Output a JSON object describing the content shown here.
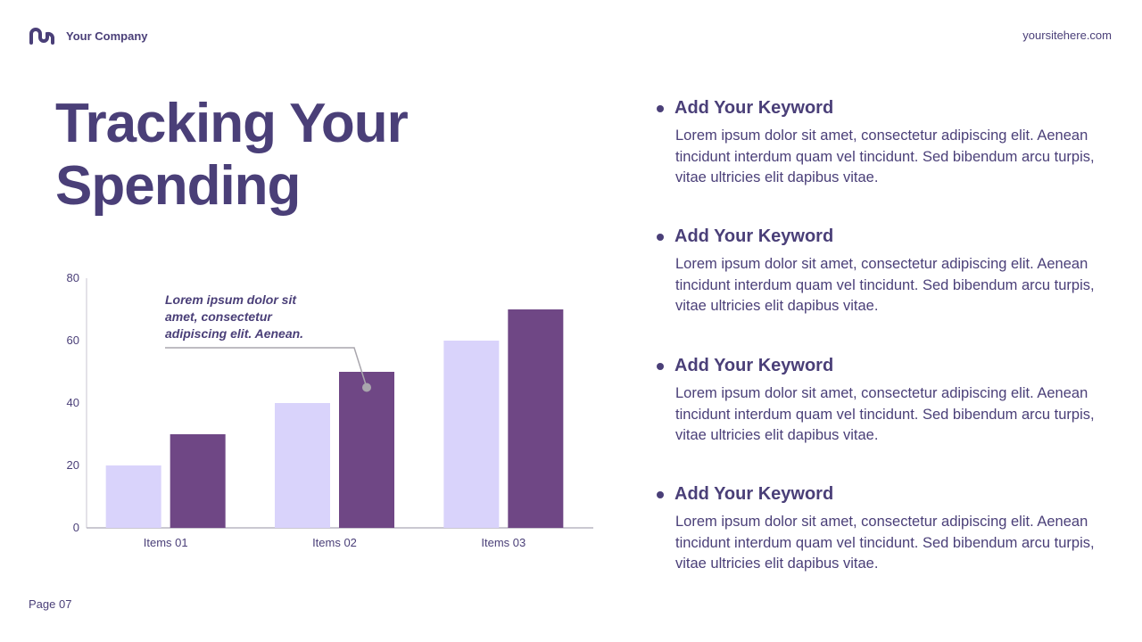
{
  "header": {
    "company": "Your Company",
    "site": "yoursitehere.com",
    "logo_icon": "m-logo-icon"
  },
  "title_line1": "Tracking Your",
  "title_line2": "Spending",
  "footer": {
    "page": "Page 07"
  },
  "colors": {
    "primary": "#4a3f78",
    "bar_light": "#d9d3fb",
    "bar_dark": "#6f4785",
    "callout": "#a9a6ad"
  },
  "keywords": [
    {
      "title": "Add Your Keyword",
      "body": "Lorem ipsum dolor sit amet, consectetur adipiscing elit. Aenean tincidunt interdum quam vel tincidunt. Sed bibendum arcu turpis, vitae ultricies elit dapibus vitae."
    },
    {
      "title": "Add Your Keyword",
      "body": "Lorem ipsum dolor sit amet, consectetur adipiscing elit. Aenean tincidunt interdum quam vel tincidunt. Sed bibendum arcu turpis, vitae ultricies elit dapibus vitae."
    },
    {
      "title": "Add Your Keyword",
      "body": "Lorem ipsum dolor sit amet, consectetur adipiscing elit. Aenean tincidunt interdum quam vel tincidunt. Sed bibendum arcu turpis, vitae ultricies elit dapibus vitae."
    },
    {
      "title": "Add Your Keyword",
      "body": "Lorem ipsum dolor sit amet, consectetur adipiscing elit. Aenean tincidunt interdum quam vel tincidunt. Sed bibendum arcu turpis, vitae ultricies elit dapibus vitae."
    }
  ],
  "chart_data": {
    "type": "bar",
    "categories": [
      "Items 01",
      "Items 02",
      "Items 03"
    ],
    "series": [
      {
        "values": [
          20,
          40,
          60
        ],
        "color": "#d9d3fb"
      },
      {
        "values": [
          30,
          50,
          70
        ],
        "color": "#6f4785"
      }
    ],
    "ylim": [
      0,
      80
    ],
    "yticks": [
      0,
      20,
      40,
      60,
      80
    ],
    "grid": false,
    "annotation": {
      "lines": [
        "Lorem ipsum dolor sit",
        "amet, consectetur",
        "adipiscing elit. Aenean."
      ],
      "category": "Items 02",
      "series_index": 1,
      "value": 45
    }
  }
}
